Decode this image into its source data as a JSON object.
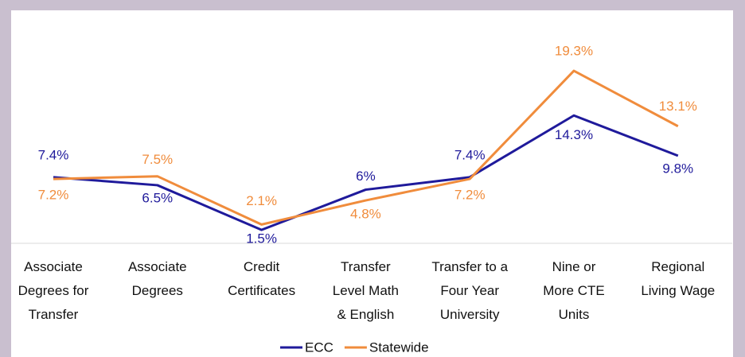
{
  "chart_data": {
    "type": "line",
    "categories": [
      "Associate\nDegrees for\nTransfer",
      "Associate\nDegrees",
      "Credit\nCertificates",
      "Transfer\nLevel Math\n& English",
      "Transfer to a\nFour Year\nUniversity",
      "Nine or\nMore CTE\nUnits",
      "Regional\nLiving Wage"
    ],
    "series": [
      {
        "name": "ECC",
        "color": "#1f1a9b",
        "values": [
          7.4,
          6.5,
          1.5,
          6,
          7.4,
          14.3,
          9.8
        ],
        "value_labels": [
          "7.4%",
          "6.5%",
          "1.5%",
          "6%",
          "7.4%",
          "14.3%",
          "9.8%"
        ]
      },
      {
        "name": "Statewide",
        "color": "#f08c3c",
        "values": [
          7.2,
          7.5,
          2.1,
          4.8,
          7.2,
          19.3,
          13.1
        ],
        "value_labels": [
          "7.2%",
          "7.5%",
          "2.1%",
          "4.8%",
          "7.2%",
          "19.3%",
          "13.1%"
        ]
      }
    ],
    "ylim": [
      0,
      25
    ],
    "grid": false,
    "legend": "bottom"
  }
}
